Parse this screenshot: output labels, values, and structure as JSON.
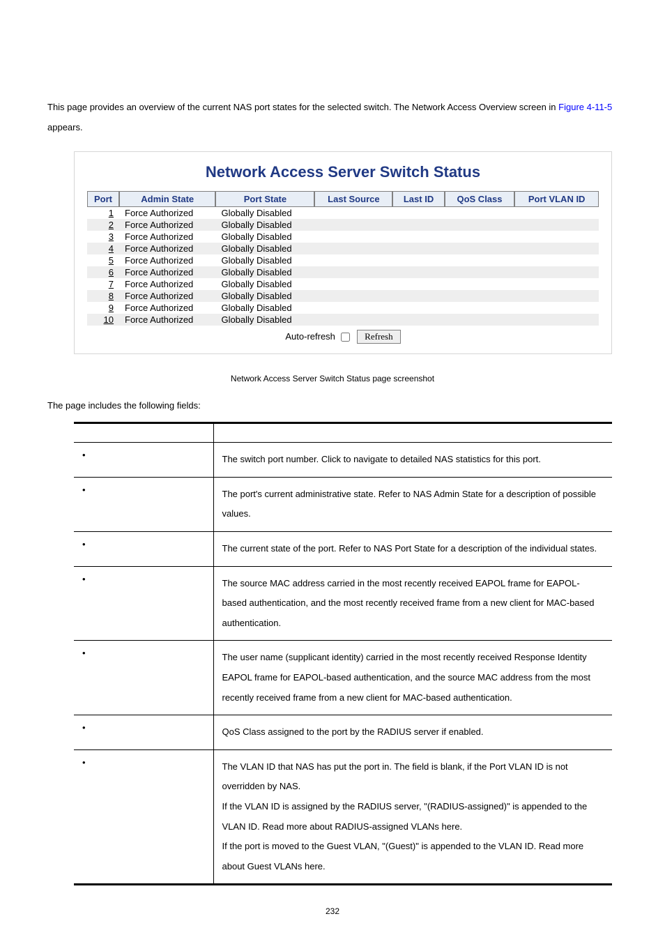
{
  "intro": {
    "text_before_link": "This page provides an overview of the current NAS port states for the selected switch. The Network Access Overview screen in ",
    "link_text": "Figure 4-11-5",
    "text_after_link": " appears."
  },
  "panel": {
    "title": "Network Access Server Switch Status",
    "headers": [
      "Port",
      "Admin State",
      "Port State",
      "Last Source",
      "Last ID",
      "QoS Class",
      "Port VLAN ID"
    ],
    "rows": [
      {
        "port": "1",
        "admin": "Force Authorized",
        "state": "Globally Disabled"
      },
      {
        "port": "2",
        "admin": "Force Authorized",
        "state": "Globally Disabled"
      },
      {
        "port": "3",
        "admin": "Force Authorized",
        "state": "Globally Disabled"
      },
      {
        "port": "4",
        "admin": "Force Authorized",
        "state": "Globally Disabled"
      },
      {
        "port": "5",
        "admin": "Force Authorized",
        "state": "Globally Disabled"
      },
      {
        "port": "6",
        "admin": "Force Authorized",
        "state": "Globally Disabled"
      },
      {
        "port": "7",
        "admin": "Force Authorized",
        "state": "Globally Disabled"
      },
      {
        "port": "8",
        "admin": "Force Authorized",
        "state": "Globally Disabled"
      },
      {
        "port": "9",
        "admin": "Force Authorized",
        "state": "Globally Disabled"
      },
      {
        "port": "10",
        "admin": "Force Authorized",
        "state": "Globally Disabled"
      }
    ],
    "auto_refresh_label": "Auto-refresh",
    "refresh_label": "Refresh"
  },
  "caption": "Network Access Server Switch Status page screenshot",
  "fields_intro": "The page includes the following fields:",
  "fields": [
    {
      "desc": "The switch port number. Click to navigate to detailed NAS statistics for this port."
    },
    {
      "desc": "The port's current administrative state. Refer to NAS Admin State for a description of possible values."
    },
    {
      "desc": "The current state of the port. Refer to NAS Port State for a description of the individual states."
    },
    {
      "desc": "The source MAC address carried in the most recently received EAPOL frame for EAPOL-based authentication, and the most recently received frame from a new client for MAC-based authentication."
    },
    {
      "desc": "The user name (supplicant identity) carried in the most recently received Response Identity EAPOL frame for EAPOL-based authentication, and the source MAC address from the most recently received frame from a new client for MAC-based authentication."
    },
    {
      "desc": "QoS Class assigned to the port by the RADIUS server if enabled."
    },
    {
      "desc": "The VLAN ID that NAS has put the port in. The field is blank, if the Port VLAN ID is not overridden by NAS.\nIf the VLAN ID is assigned by the RADIUS server, \"(RADIUS-assigned)\" is appended to the VLAN ID. Read more about RADIUS-assigned VLANs here.\nIf the port is moved to the Guest VLAN, \"(Guest)\" is appended to the VLAN ID. Read more about Guest VLANs here."
    }
  ],
  "pagenum": "232"
}
